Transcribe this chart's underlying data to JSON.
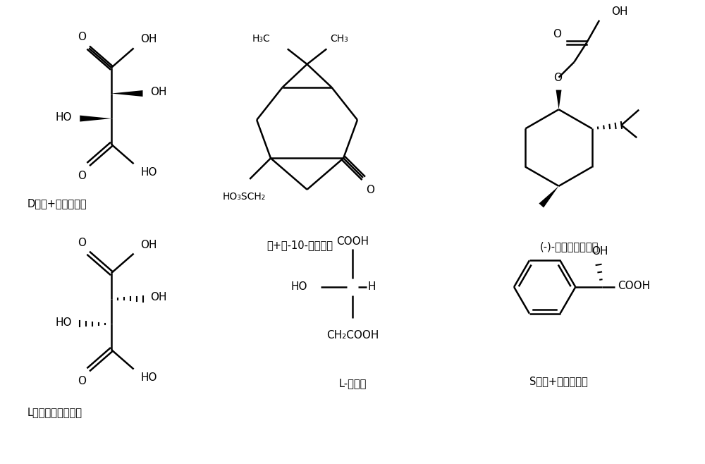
{
  "background_color": "#ffffff",
  "line_color": "#000000",
  "text_color": "#000000",
  "lw": 1.8,
  "label1": "D－（+）－酒石酸",
  "label2": "（+）-10-樟脑磺酸",
  "label3": "(-)-薄荷氧基乙酸。",
  "label4": "L－（－）－酒石酸",
  "label5": "L-苹果酸",
  "label6": "S－（+）－扁桃酸"
}
